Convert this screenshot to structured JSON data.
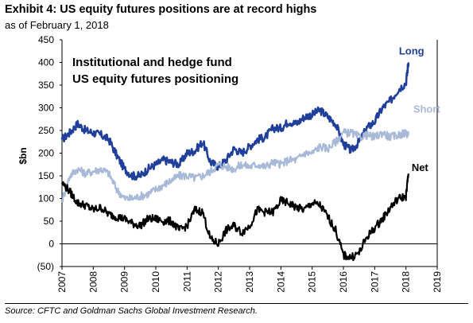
{
  "title": "Exhibit 4: US equity futures positions are at record highs",
  "subtitle": "as of February 1, 2018",
  "source": "Source: CFTC and Goldman Sachs Global Investment Research.",
  "chart_data": {
    "type": "line",
    "annotation": [
      "Institutional and  hedge fund",
      "US equity futures positioning"
    ],
    "ylabel": "$bn",
    "xlabel": "",
    "xlim": [
      2007,
      2019
    ],
    "ylim": [
      -50,
      450
    ],
    "x_ticks": [
      "2007",
      "2008",
      "2009",
      "2010",
      "2011",
      "2012",
      "2013",
      "2014",
      "2015",
      "2016",
      "2017",
      "2018",
      "2019"
    ],
    "y_ticks": [
      "450",
      "400",
      "350",
      "300",
      "250",
      "200",
      "150",
      "100",
      "50",
      "0",
      "(50)"
    ],
    "grid": false,
    "legend": "inline labels",
    "series": [
      {
        "name": "Long",
        "color": "#1f3f9a",
        "x": [
          2007.0,
          2007.25,
          2007.5,
          2007.75,
          2008.0,
          2008.25,
          2008.5,
          2008.75,
          2009.0,
          2009.25,
          2009.5,
          2009.75,
          2010.0,
          2010.25,
          2010.5,
          2010.75,
          2011.0,
          2011.25,
          2011.5,
          2011.75,
          2012.0,
          2012.25,
          2012.5,
          2012.75,
          2013.0,
          2013.25,
          2013.5,
          2013.75,
          2014.0,
          2014.25,
          2014.5,
          2014.75,
          2015.0,
          2015.25,
          2015.5,
          2015.75,
          2016.0,
          2016.25,
          2016.5,
          2016.75,
          2017.0,
          2017.25,
          2017.5,
          2017.75,
          2018.0,
          2018.08
        ],
        "values": [
          230,
          245,
          265,
          250,
          245,
          240,
          230,
          195,
          165,
          150,
          150,
          165,
          175,
          185,
          180,
          175,
          200,
          205,
          225,
          180,
          170,
          185,
          210,
          200,
          215,
          230,
          235,
          255,
          255,
          270,
          265,
          280,
          285,
          295,
          280,
          265,
          220,
          205,
          225,
          255,
          270,
          300,
          315,
          340,
          355,
          400
        ]
      },
      {
        "name": "Short",
        "color": "#a8bad8",
        "x": [
          2007.0,
          2007.25,
          2007.5,
          2007.75,
          2008.0,
          2008.25,
          2008.5,
          2008.75,
          2009.0,
          2009.25,
          2009.5,
          2009.75,
          2010.0,
          2010.25,
          2010.5,
          2010.75,
          2011.0,
          2011.25,
          2011.5,
          2011.75,
          2012.0,
          2012.25,
          2012.5,
          2012.75,
          2013.0,
          2013.25,
          2013.5,
          2013.75,
          2014.0,
          2014.25,
          2014.5,
          2014.75,
          2015.0,
          2015.25,
          2015.5,
          2015.75,
          2016.0,
          2016.25,
          2016.5,
          2016.75,
          2017.0,
          2017.25,
          2017.5,
          2017.75,
          2018.0,
          2018.08
        ],
        "values": [
          95,
          150,
          165,
          155,
          160,
          165,
          155,
          120,
          100,
          100,
          105,
          110,
          120,
          130,
          140,
          150,
          150,
          145,
          150,
          160,
          175,
          170,
          165,
          175,
          170,
          175,
          170,
          180,
          175,
          185,
          185,
          200,
          200,
          215,
          210,
          225,
          245,
          245,
          235,
          240,
          235,
          245,
          235,
          240,
          245,
          240
        ]
      },
      {
        "name": "Net",
        "color": "#000000",
        "x": [
          2007.0,
          2007.25,
          2007.5,
          2007.75,
          2008.0,
          2008.25,
          2008.5,
          2008.75,
          2009.0,
          2009.25,
          2009.5,
          2009.75,
          2010.0,
          2010.25,
          2010.5,
          2010.75,
          2011.0,
          2011.25,
          2011.5,
          2011.75,
          2012.0,
          2012.25,
          2012.5,
          2012.75,
          2013.0,
          2013.25,
          2013.5,
          2013.75,
          2014.0,
          2014.25,
          2014.5,
          2014.75,
          2015.0,
          2015.25,
          2015.5,
          2015.75,
          2016.0,
          2016.25,
          2016.5,
          2016.75,
          2017.0,
          2017.25,
          2017.5,
          2017.75,
          2018.0,
          2018.08
        ],
        "values": [
          135,
          115,
          90,
          85,
          75,
          80,
          65,
          60,
          55,
          45,
          40,
          55,
          55,
          50,
          50,
          30,
          40,
          75,
          70,
          10,
          0,
          30,
          40,
          25,
          40,
          75,
          70,
          70,
          95,
          90,
          80,
          75,
          90,
          85,
          60,
          30,
          -25,
          -30,
          -20,
          15,
          35,
          55,
          80,
          100,
          105,
          155
        ]
      }
    ]
  }
}
